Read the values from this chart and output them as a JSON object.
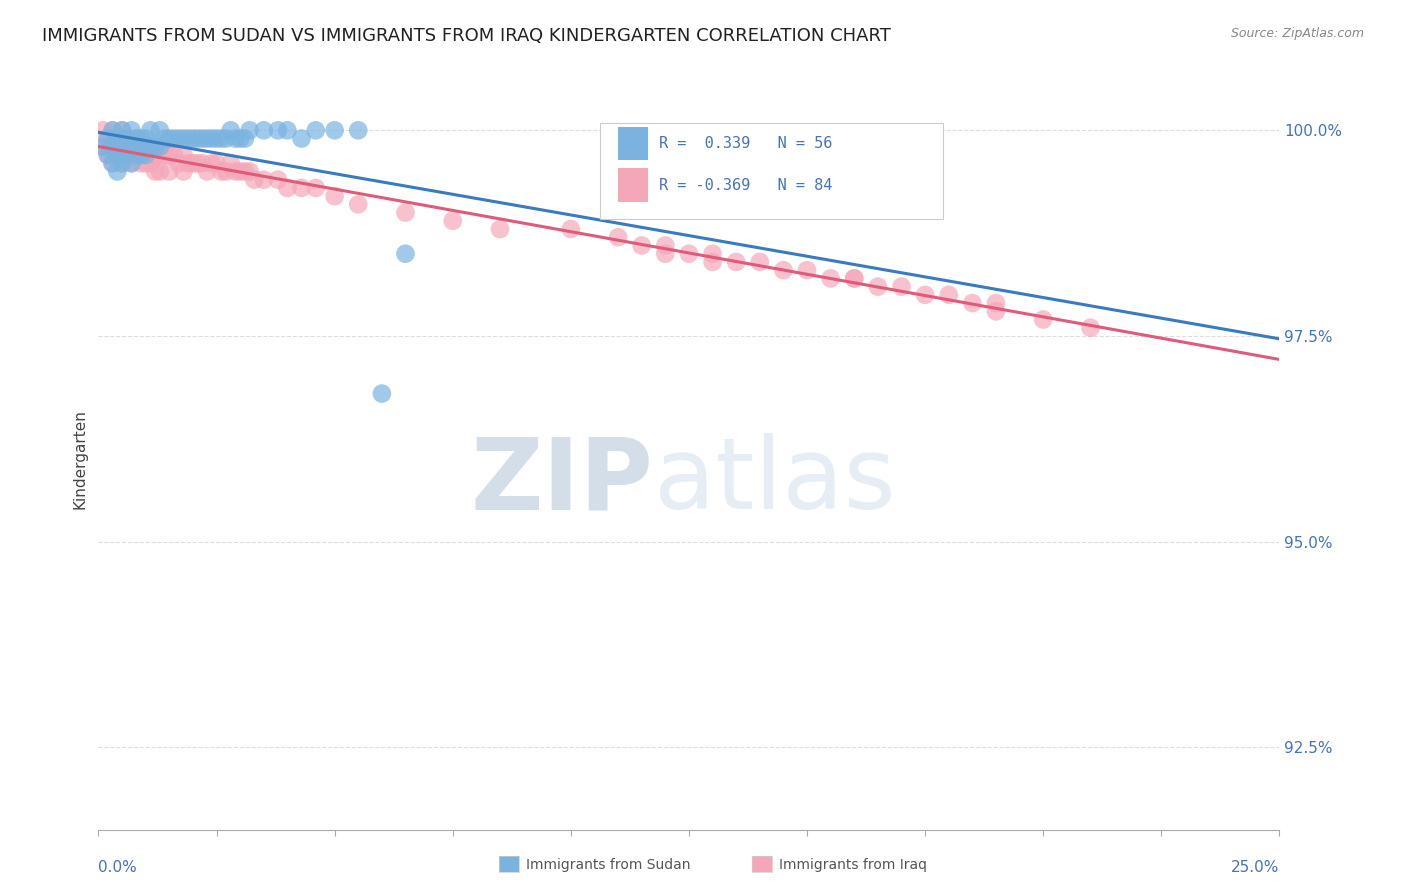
{
  "title": "IMMIGRANTS FROM SUDAN VS IMMIGRANTS FROM IRAQ KINDERGARTEN CORRELATION CHART",
  "source": "Source: ZipAtlas.com",
  "ylabel": "Kindergarten",
  "ytick_labels": [
    "92.5%",
    "95.0%",
    "97.5%",
    "100.0%"
  ],
  "ytick_vals": [
    0.925,
    0.95,
    0.975,
    1.0
  ],
  "xlim": [
    0.0,
    0.25
  ],
  "ylim": [
    0.915,
    1.005
  ],
  "sudan_R": 0.339,
  "sudan_N": 56,
  "iraq_R": -0.369,
  "iraq_N": 84,
  "sudan_color": "#7ab3e0",
  "iraq_color": "#f4a7b9",
  "sudan_line_color": "#3a7abf",
  "iraq_line_color": "#e05a7a",
  "sudan_points_x": [
    0.001,
    0.002,
    0.002,
    0.003,
    0.003,
    0.003,
    0.004,
    0.004,
    0.004,
    0.005,
    0.005,
    0.005,
    0.006,
    0.006,
    0.007,
    0.007,
    0.007,
    0.008,
    0.008,
    0.009,
    0.009,
    0.01,
    0.01,
    0.011,
    0.011,
    0.012,
    0.013,
    0.013,
    0.014,
    0.015,
    0.016,
    0.017,
    0.018,
    0.019,
    0.02,
    0.021,
    0.022,
    0.023,
    0.024,
    0.025,
    0.026,
    0.027,
    0.028,
    0.029,
    0.03,
    0.031,
    0.032,
    0.035,
    0.038,
    0.04,
    0.043,
    0.046,
    0.05,
    0.055,
    0.06,
    0.065
  ],
  "sudan_points_y": [
    0.998,
    0.997,
    0.999,
    0.996,
    0.998,
    1.0,
    0.995,
    0.997,
    0.999,
    0.996,
    0.998,
    1.0,
    0.997,
    0.999,
    0.996,
    0.998,
    1.0,
    0.997,
    0.999,
    0.997,
    0.999,
    0.997,
    0.999,
    0.998,
    1.0,
    0.998,
    0.998,
    1.0,
    0.999,
    0.999,
    0.999,
    0.999,
    0.999,
    0.999,
    0.999,
    0.999,
    0.999,
    0.999,
    0.999,
    0.999,
    0.999,
    0.999,
    1.0,
    0.999,
    0.999,
    0.999,
    1.0,
    1.0,
    1.0,
    1.0,
    0.999,
    1.0,
    1.0,
    1.0,
    0.968,
    0.985
  ],
  "iraq_points_x": [
    0.001,
    0.001,
    0.002,
    0.002,
    0.003,
    0.003,
    0.003,
    0.004,
    0.004,
    0.005,
    0.005,
    0.005,
    0.006,
    0.006,
    0.007,
    0.007,
    0.008,
    0.008,
    0.009,
    0.009,
    0.01,
    0.01,
    0.011,
    0.011,
    0.012,
    0.012,
    0.013,
    0.013,
    0.014,
    0.015,
    0.015,
    0.016,
    0.017,
    0.018,
    0.018,
    0.019,
    0.02,
    0.021,
    0.022,
    0.023,
    0.024,
    0.025,
    0.026,
    0.027,
    0.028,
    0.029,
    0.03,
    0.031,
    0.032,
    0.033,
    0.035,
    0.038,
    0.04,
    0.043,
    0.046,
    0.05,
    0.055,
    0.065,
    0.075,
    0.085,
    0.1,
    0.11,
    0.12,
    0.13,
    0.14,
    0.15,
    0.16,
    0.17,
    0.18,
    0.19,
    0.12,
    0.13,
    0.145,
    0.155,
    0.165,
    0.175,
    0.185,
    0.19,
    0.2,
    0.21,
    0.115,
    0.125,
    0.135,
    0.16
  ],
  "iraq_points_y": [
    1.0,
    0.998,
    0.999,
    0.997,
    1.0,
    0.998,
    0.996,
    0.999,
    0.997,
    1.0,
    0.998,
    0.996,
    0.999,
    0.997,
    0.998,
    0.996,
    0.999,
    0.997,
    0.998,
    0.996,
    0.998,
    0.996,
    0.998,
    0.996,
    0.997,
    0.995,
    0.997,
    0.995,
    0.997,
    0.997,
    0.995,
    0.997,
    0.996,
    0.997,
    0.995,
    0.996,
    0.996,
    0.996,
    0.996,
    0.995,
    0.996,
    0.996,
    0.995,
    0.995,
    0.996,
    0.995,
    0.995,
    0.995,
    0.995,
    0.994,
    0.994,
    0.994,
    0.993,
    0.993,
    0.993,
    0.992,
    0.991,
    0.99,
    0.989,
    0.988,
    0.988,
    0.987,
    0.986,
    0.985,
    0.984,
    0.983,
    0.982,
    0.981,
    0.98,
    0.979,
    0.985,
    0.984,
    0.983,
    0.982,
    0.981,
    0.98,
    0.979,
    0.978,
    0.977,
    0.976,
    0.986,
    0.985,
    0.984,
    0.982
  ],
  "watermark_zip": "ZIP",
  "watermark_atlas": "atlas",
  "background_color": "#ffffff",
  "grid_color": "#dddddd",
  "tick_color": "#4472c4",
  "title_color": "#222222",
  "title_fontsize": 13,
  "axis_label_fontsize": 11,
  "tick_fontsize": 11
}
